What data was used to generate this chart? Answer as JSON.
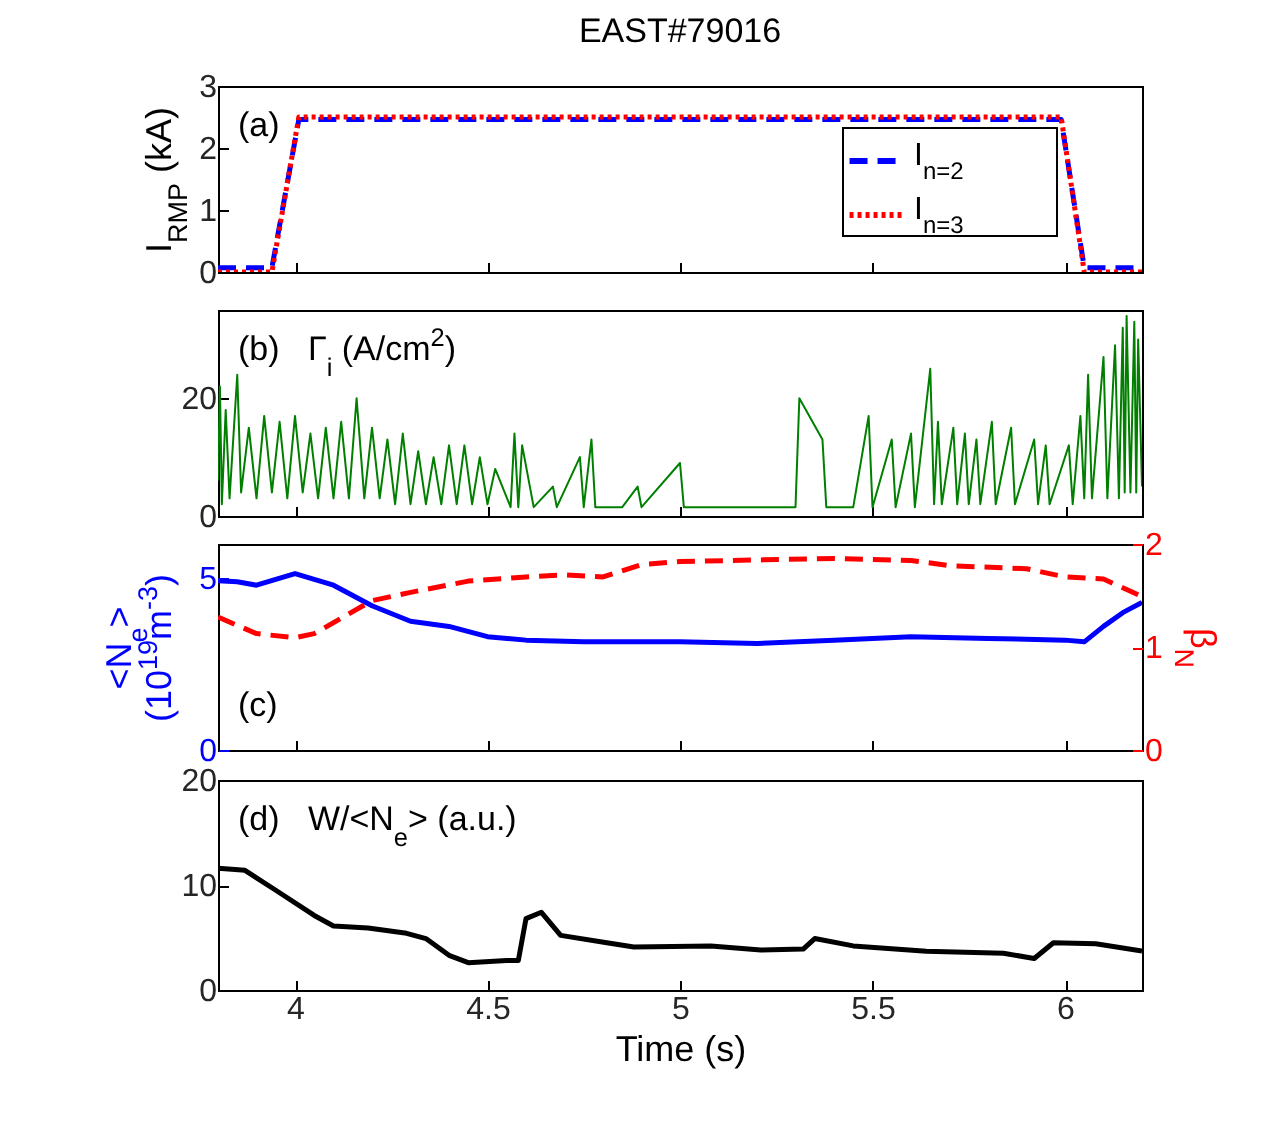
{
  "chart_data": [
    {
      "type": "line",
      "title": "EAST#79016",
      "ylabel": "I$_{RMP}$ (kA)",
      "annotations": [
        "(a)"
      ],
      "x": [
        3.8,
        3.94,
        4.01,
        5.99,
        6.05,
        6.2
      ],
      "xlim": [
        3.8,
        6.2
      ],
      "xticks": [
        4,
        4.5,
        5,
        5.5,
        6
      ],
      "ylim": [
        0,
        3
      ],
      "yticks": [
        0,
        1,
        2,
        3
      ],
      "tick_labels": "y",
      "legend": "right",
      "grid": false,
      "series": [
        {
          "name": "I$_{n=2}$",
          "color": "#0000ff",
          "line_style": "dashed",
          "values": [
            0.07,
            0.07,
            2.46,
            2.46,
            0.07,
            0.07
          ]
        },
        {
          "name": "I$_{n=3}$",
          "color": "#ff0000",
          "line_style": "dotted",
          "values": [
            0,
            0,
            2.5,
            2.5,
            0,
            0
          ]
        }
      ]
    },
    {
      "type": "line",
      "annotations": [
        "(b)   Γ$_{i}$ (A/cm$^{2}$)"
      ],
      "xlim": [
        3.8,
        6.2
      ],
      "xticks": [
        4,
        4.5,
        5,
        5.5,
        6
      ],
      "ylim": [
        0,
        35
      ],
      "yticks": [
        0,
        20
      ],
      "tick_labels": "y",
      "grid": false,
      "x": [
        3.8,
        3.805,
        3.81,
        3.82,
        3.83,
        3.85,
        3.86,
        3.88,
        3.9,
        3.92,
        3.94,
        3.96,
        3.98,
        4.0,
        4.02,
        4.04,
        4.06,
        4.08,
        4.1,
        4.12,
        4.14,
        4.16,
        4.18,
        4.2,
        4.22,
        4.24,
        4.26,
        4.28,
        4.3,
        4.32,
        4.34,
        4.36,
        4.38,
        4.4,
        4.42,
        4.44,
        4.46,
        4.48,
        4.5,
        4.52,
        4.56,
        4.57,
        4.58,
        4.59,
        4.62,
        4.67,
        4.68,
        4.74,
        4.75,
        4.77,
        4.78,
        4.85,
        4.89,
        4.9,
        5.0,
        5.01,
        5.1,
        5.2,
        5.3,
        5.31,
        5.37,
        5.38,
        5.45,
        5.49,
        5.5,
        5.55,
        5.56,
        5.6,
        5.61,
        5.65,
        5.66,
        5.67,
        5.68,
        5.71,
        5.72,
        5.74,
        5.75,
        5.77,
        5.78,
        5.81,
        5.82,
        5.86,
        5.87,
        5.92,
        5.93,
        5.95,
        5.96,
        6.01,
        6.02,
        6.04,
        6.05,
        6.06,
        6.07,
        6.1,
        6.11,
        6.13,
        6.14,
        6.15,
        6.155,
        6.16,
        6.17,
        6.18,
        6.185,
        6.19,
        6.2
      ],
      "series": [
        {
          "color": "#007f00",
          "values": [
            6,
            22,
            2,
            18,
            3,
            24,
            4,
            15,
            3,
            17,
            4,
            16,
            3,
            17,
            4,
            14,
            3,
            15,
            3,
            16,
            3,
            20,
            3,
            15,
            3,
            13,
            2,
            14,
            2,
            11,
            2,
            10,
            2,
            12,
            2,
            12,
            2,
            10,
            2,
            8,
            1.5,
            14,
            1.5,
            12,
            1.5,
            5,
            1.5,
            10,
            1.5,
            13,
            1.5,
            1.5,
            5,
            1.5,
            9,
            1.5,
            1.5,
            1.5,
            1.5,
            20,
            13,
            1.5,
            1.5,
            17,
            1.5,
            13,
            1.5,
            14,
            1.5,
            25,
            2,
            16,
            2,
            15,
            2,
            14,
            2,
            13,
            2,
            16,
            2,
            15,
            2,
            13,
            2,
            12,
            2,
            12,
            2,
            17,
            3,
            24,
            3,
            27,
            3,
            29,
            3,
            32,
            4,
            34,
            4,
            33,
            4,
            30,
            5
          ]
        }
      ]
    },
    {
      "type": "line",
      "ylabel": "<N$_{e}$>\n(10$^{19}$m$^{-3}$)",
      "y2label": "β$_{N}$",
      "annotations": [
        "(c)"
      ],
      "xlim": [
        3.8,
        6.2
      ],
      "xticks": [
        4,
        4.5,
        5,
        5.5,
        6
      ],
      "ylim": [
        0,
        6
      ],
      "yticks": [
        0,
        5
      ],
      "y2lim": [
        0,
        2
      ],
      "y2ticks": [
        0,
        1,
        2
      ],
      "tick_labels": "y",
      "grid": false,
      "series": [
        {
          "color": "#0000ff",
          "line_style": "solid",
          "x": [
            3.8,
            3.85,
            3.9,
            4.0,
            4.1,
            4.2,
            4.3,
            4.4,
            4.5,
            4.6,
            4.75,
            4.9,
            5.0,
            5.2,
            5.4,
            5.6,
            5.8,
            6.0,
            6.05,
            6.1,
            6.15,
            6.2
          ],
          "values": [
            4.93,
            4.9,
            4.8,
            5.14,
            4.8,
            4.2,
            3.75,
            3.6,
            3.3,
            3.2,
            3.15,
            3.15,
            3.15,
            3.1,
            3.2,
            3.3,
            3.25,
            3.2,
            3.15,
            3.6,
            4.0,
            4.3
          ]
        },
        {
          "color": "#ff0000",
          "line_style": "dashed",
          "axis": "y2",
          "x": [
            3.8,
            3.9,
            4.0,
            4.05,
            4.2,
            4.3,
            4.45,
            4.6,
            4.7,
            4.8,
            4.9,
            5.0,
            5.4,
            5.6,
            5.7,
            5.9,
            6.0,
            6.1,
            6.2
          ],
          "values": [
            1.29,
            1.13,
            1.09,
            1.13,
            1.45,
            1.53,
            1.64,
            1.68,
            1.7,
            1.68,
            1.8,
            1.83,
            1.86,
            1.84,
            1.79,
            1.76,
            1.68,
            1.66,
            1.49
          ]
        }
      ]
    },
    {
      "type": "line",
      "xlabel": "Time (s)",
      "annotations": [
        "(d)   W/<N$_{e}$> (a.u.)"
      ],
      "xlim": [
        3.8,
        6.2
      ],
      "xticks": [
        4,
        4.5,
        5,
        5.5,
        6
      ],
      "ylim": [
        0,
        20
      ],
      "yticks": [
        0,
        10,
        20
      ],
      "grid": false,
      "x": [
        3.8,
        3.87,
        3.95,
        4.05,
        4.1,
        4.19,
        4.29,
        4.34,
        4.4,
        4.45,
        4.55,
        4.58,
        4.6,
        4.64,
        4.69,
        4.81,
        4.88,
        5.08,
        5.21,
        5.32,
        5.35,
        5.45,
        5.64,
        5.84,
        5.92,
        5.97,
        6.08,
        6.2
      ],
      "series": [
        {
          "color": "#000000",
          "values": [
            11.6,
            11.4,
            9.5,
            7.1,
            6.1,
            5.9,
            5.4,
            4.9,
            3.3,
            2.6,
            2.8,
            2.8,
            6.8,
            7.4,
            5.2,
            4.5,
            4.1,
            4.2,
            3.8,
            3.9,
            4.9,
            4.2,
            3.7,
            3.5,
            3.0,
            4.5,
            4.4,
            3.7
          ]
        }
      ]
    }
  ]
}
